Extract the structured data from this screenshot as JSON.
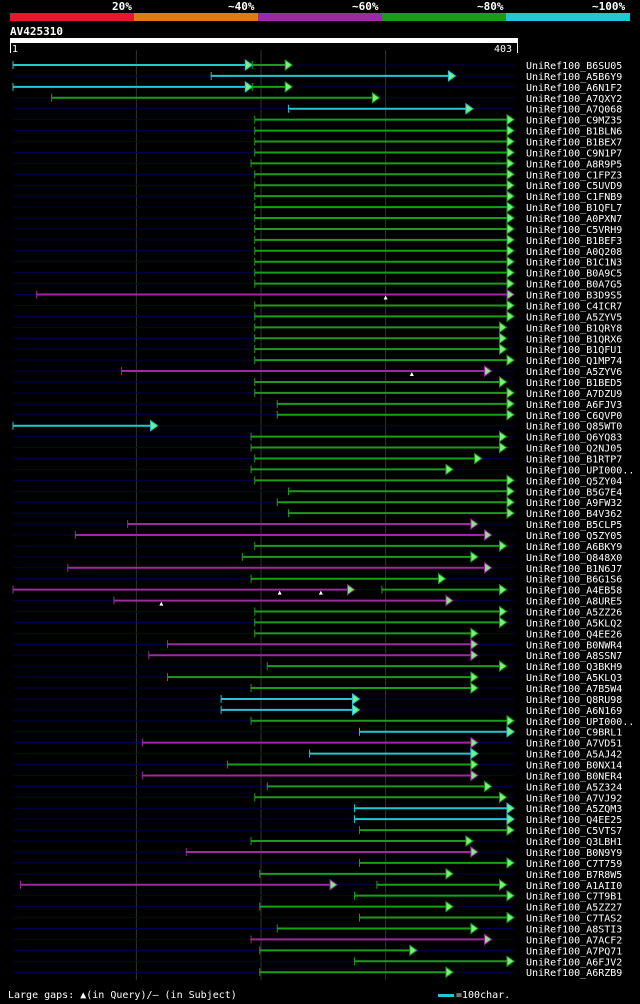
{
  "colors": {
    "background": "#000000",
    "row_line": "#000044",
    "grid_line": "#333333",
    "pct_20": "#e8162e",
    "pct_40": "#e07b14",
    "pct_60": "#9c2aa0",
    "pct_80": "#1a9e1a",
    "pct_100": "#22c7d4",
    "cap": "#7cf07c",
    "query": "#ffffff"
  },
  "legend": [
    {
      "label": "20%",
      "color": "#e8162e"
    },
    {
      "label": "~40%",
      "color": "#e07b14"
    },
    {
      "label": "~60%",
      "color": "#9c2aa0"
    },
    {
      "label": "~80%",
      "color": "#1a9e1a"
    },
    {
      "label": "~100%",
      "color": "#22c7d4"
    }
  ],
  "query": {
    "id": "AV425310",
    "start": "1",
    "end": "403"
  },
  "hits_data": {
    "query_length": 403,
    "grid_positions": [
      100,
      200,
      300
    ],
    "hits": [
      {
        "id": "UniRef100_B6SU05",
        "start": 1,
        "end": 193,
        "color": "cyan",
        "ext_start": 193,
        "ext_end": 225
      },
      {
        "id": "UniRef100_A5B6Y9",
        "start": 160,
        "end": 356,
        "color": "cyan"
      },
      {
        "id": "UniRef100_A6N1F2",
        "start": 1,
        "end": 193,
        "color": "cyan",
        "ext_start": 193,
        "ext_end": 225
      },
      {
        "id": "UniRef100_A7QXY2",
        "start": 32,
        "end": 295,
        "color": "green"
      },
      {
        "id": "UniRef100_A7Q068",
        "start": 222,
        "end": 370,
        "color": "cyan"
      },
      {
        "id": "UniRef100_C9MZ35",
        "start": 195,
        "end": 403,
        "color": "green"
      },
      {
        "id": "UniRef100_B1BLN6",
        "start": 195,
        "end": 403,
        "color": "green"
      },
      {
        "id": "UniRef100_B1BEX7",
        "start": 195,
        "end": 403,
        "color": "green"
      },
      {
        "id": "UniRef100_C9N1P7",
        "start": 195,
        "end": 403,
        "color": "green"
      },
      {
        "id": "UniRef100_A8R9P5",
        "start": 192,
        "end": 403,
        "color": "green"
      },
      {
        "id": "UniRef100_C1FPZ3",
        "start": 195,
        "end": 403,
        "color": "green"
      },
      {
        "id": "UniRef100_C5UVD9",
        "start": 195,
        "end": 403,
        "color": "green"
      },
      {
        "id": "UniRef100_C1FNB9",
        "start": 195,
        "end": 403,
        "color": "green"
      },
      {
        "id": "UniRef100_B1QFL7",
        "start": 195,
        "end": 403,
        "color": "green"
      },
      {
        "id": "UniRef100_A0PXN7",
        "start": 195,
        "end": 403,
        "color": "green"
      },
      {
        "id": "UniRef100_C5VRH9",
        "start": 195,
        "end": 403,
        "color": "green"
      },
      {
        "id": "UniRef100_B1BEF3",
        "start": 195,
        "end": 403,
        "color": "green"
      },
      {
        "id": "UniRef100_A0Q208",
        "start": 195,
        "end": 403,
        "color": "green"
      },
      {
        "id": "UniRef100_B1C1N3",
        "start": 195,
        "end": 403,
        "color": "green"
      },
      {
        "id": "UniRef100_B0A9C5",
        "start": 195,
        "end": 403,
        "color": "green"
      },
      {
        "id": "UniRef100_B0A7G5",
        "start": 195,
        "end": 403,
        "color": "green"
      },
      {
        "id": "UniRef100_B3D9S5",
        "start": 20,
        "end": 403,
        "color": "purple",
        "gaps": [
          300
        ]
      },
      {
        "id": "UniRef100_C4ICR7",
        "start": 195,
        "end": 403,
        "color": "green"
      },
      {
        "id": "UniRef100_A5ZYV5",
        "start": 195,
        "end": 403,
        "color": "green"
      },
      {
        "id": "UniRef100_B1QRY8",
        "start": 195,
        "end": 397,
        "color": "green"
      },
      {
        "id": "UniRef100_B1QRX6",
        "start": 195,
        "end": 397,
        "color": "green"
      },
      {
        "id": "UniRef100_B1QFU1",
        "start": 195,
        "end": 397,
        "color": "green"
      },
      {
        "id": "UniRef100_Q1MP74",
        "start": 195,
        "end": 403,
        "color": "green"
      },
      {
        "id": "UniRef100_A5ZYV6",
        "start": 88,
        "end": 385,
        "color": "purple",
        "gaps": [
          321
        ]
      },
      {
        "id": "UniRef100_B1BED5",
        "start": 195,
        "end": 397,
        "color": "green"
      },
      {
        "id": "UniRef100_A7DZU9",
        "start": 195,
        "end": 403,
        "color": "green"
      },
      {
        "id": "UniRef100_A6FJV3",
        "start": 213,
        "end": 403,
        "color": "green"
      },
      {
        "id": "UniRef100_C6QVP0",
        "start": 213,
        "end": 403,
        "color": "green"
      },
      {
        "id": "UniRef100_Q85WT0",
        "start": 1,
        "end": 117,
        "color": "cyan"
      },
      {
        "id": "UniRef100_Q6YQ83",
        "start": 192,
        "end": 397,
        "color": "green"
      },
      {
        "id": "UniRef100_Q2NJ05",
        "start": 192,
        "end": 397,
        "color": "green"
      },
      {
        "id": "UniRef100_B1RTP7",
        "start": 195,
        "end": 377,
        "color": "green"
      },
      {
        "id": "UniRef100_UPI000..",
        "start": 192,
        "end": 354,
        "color": "green"
      },
      {
        "id": "UniRef100_Q5ZY04",
        "start": 195,
        "end": 403,
        "color": "green"
      },
      {
        "id": "UniRef100_B5G7E4",
        "start": 222,
        "end": 403,
        "color": "green"
      },
      {
        "id": "UniRef100_A9FW32",
        "start": 213,
        "end": 403,
        "color": "green"
      },
      {
        "id": "UniRef100_B4V362",
        "start": 222,
        "end": 403,
        "color": "green"
      },
      {
        "id": "UniRef100_B5CLP5",
        "start": 93,
        "end": 374,
        "color": "purple"
      },
      {
        "id": "UniRef100_Q5ZY05",
        "start": 51,
        "end": 385,
        "color": "purple"
      },
      {
        "id": "UniRef100_A6BKY9",
        "start": 195,
        "end": 397,
        "color": "green"
      },
      {
        "id": "UniRef100_Q848X0",
        "start": 185,
        "end": 374,
        "color": "green"
      },
      {
        "id": "UniRef100_B1N6J7",
        "start": 45,
        "end": 385,
        "color": "purple"
      },
      {
        "id": "UniRef100_B6G1S6",
        "start": 192,
        "end": 348,
        "color": "green"
      },
      {
        "id": "UniRef100_A4EB58",
        "start": 1,
        "end": 275,
        "color": "purple",
        "gaps": [
          215,
          248
        ],
        "ext_start": 297,
        "ext_end": 397
      },
      {
        "id": "UniRef100_A8URE5",
        "start": 82,
        "end": 354,
        "color": "purple",
        "gaps": [
          120
        ]
      },
      {
        "id": "UniRef100_A5ZZ26",
        "start": 195,
        "end": 397,
        "color": "green"
      },
      {
        "id": "UniRef100_A5KLQ2",
        "start": 195,
        "end": 397,
        "color": "green"
      },
      {
        "id": "UniRef100_Q4EE26",
        "start": 195,
        "end": 374,
        "color": "green"
      },
      {
        "id": "UniRef100_B0NWR4",
        "start": 125,
        "end": 374,
        "color": "purple"
      },
      {
        "id": "UniRef100_A8SSN7",
        "start": 110,
        "end": 374,
        "color": "purple"
      },
      {
        "id": "UniRef100_Q3BKH9",
        "start": 205,
        "end": 397,
        "color": "green"
      },
      {
        "id": "UniRef100_A5KLQ3",
        "start": 125,
        "end": 374,
        "color": "green"
      },
      {
        "id": "UniRef100_A7B5W4",
        "start": 192,
        "end": 374,
        "color": "green"
      },
      {
        "id": "UniRef100_Q8RU98",
        "start": 168,
        "end": 279,
        "color": "cyan"
      },
      {
        "id": "UniRef100_A6N169",
        "start": 168,
        "end": 279,
        "color": "cyan"
      },
      {
        "id": "UniRef100_UPI000..",
        "start": 192,
        "end": 403,
        "color": "green"
      },
      {
        "id": "UniRef100_C9BRL1",
        "start": 279,
        "end": 403,
        "color": "cyan"
      },
      {
        "id": "UniRef100_A7VD51",
        "start": 105,
        "end": 374,
        "color": "purple"
      },
      {
        "id": "UniRef100_A5AJ42",
        "start": 239,
        "end": 374,
        "color": "cyan"
      },
      {
        "id": "UniRef100_B0NX14",
        "start": 173,
        "end": 374,
        "color": "green"
      },
      {
        "id": "UniRef100_B0NER4",
        "start": 105,
        "end": 374,
        "color": "purple"
      },
      {
        "id": "UniRef100_A5Z324",
        "start": 205,
        "end": 385,
        "color": "green"
      },
      {
        "id": "UniRef100_A7VJ92",
        "start": 195,
        "end": 397,
        "color": "green"
      },
      {
        "id": "UniRef100_A5ZQM3",
        "start": 275,
        "end": 403,
        "color": "cyan"
      },
      {
        "id": "UniRef100_Q4EE25",
        "start": 275,
        "end": 403,
        "color": "cyan"
      },
      {
        "id": "UniRef100_C5VTS7",
        "start": 279,
        "end": 403,
        "color": "green"
      },
      {
        "id": "UniRef100_Q3LBH1",
        "start": 192,
        "end": 370,
        "color": "green"
      },
      {
        "id": "UniRef100_B0N9Y9",
        "start": 140,
        "end": 374,
        "color": "purple"
      },
      {
        "id": "UniRef100_C7T759",
        "start": 279,
        "end": 403,
        "color": "green"
      },
      {
        "id": "UniRef100_B7R8W5",
        "start": 199,
        "end": 354,
        "color": "green"
      },
      {
        "id": "UniRef100_A1AII0",
        "start": 7,
        "end": 261,
        "color": "purple",
        "ext_start": 293,
        "ext_end": 397
      },
      {
        "id": "UniRef100_C7T9B1",
        "start": 275,
        "end": 403,
        "color": "green"
      },
      {
        "id": "UniRef100_A5ZZ27",
        "start": 199,
        "end": 354,
        "color": "green"
      },
      {
        "id": "UniRef100_C7TAS2",
        "start": 279,
        "end": 403,
        "color": "green"
      },
      {
        "id": "UniRef100_A8STI3",
        "start": 213,
        "end": 374,
        "color": "green"
      },
      {
        "id": "UniRef100_A7ACF2",
        "start": 192,
        "end": 385,
        "color": "purple"
      },
      {
        "id": "UniRef100_A7PQ71",
        "start": 199,
        "end": 325,
        "color": "green"
      },
      {
        "id": "UniRef100_A6FJV2",
        "start": 275,
        "end": 403,
        "color": "green"
      },
      {
        "id": "UniRef100_A6RZB9",
        "start": 199,
        "end": 354,
        "color": "green"
      }
    ]
  },
  "footer": {
    "gaps_text": "Large gaps: ▲(in Query)/– (in Subject)",
    "scale_text": "=100char."
  }
}
